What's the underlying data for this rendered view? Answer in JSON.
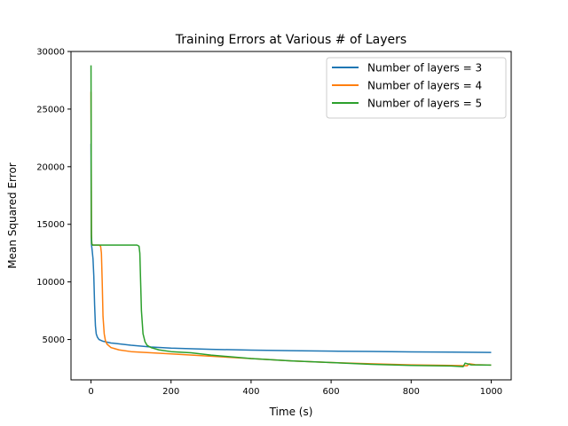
{
  "chart_data": {
    "type": "line",
    "title": "Training Errors at Various # of Layers",
    "xlabel": "Time (s)",
    "ylabel": "Mean Squared Error",
    "xlim": [
      -50,
      1050
    ],
    "ylim": [
      1500,
      30000
    ],
    "xticks": [
      0,
      200,
      400,
      600,
      800,
      1000
    ],
    "yticks": [
      5000,
      10000,
      15000,
      20000,
      25000,
      30000
    ],
    "xtick_labels": [
      "0",
      "200",
      "400",
      "600",
      "800",
      "1000"
    ],
    "ytick_labels": [
      "5000",
      "10000",
      "15000",
      "20000",
      "25000",
      "30000"
    ],
    "grid": false,
    "legend_position": "top-right",
    "series": [
      {
        "name": "Number of layers = 3",
        "color": "#1f77b4",
        "x": [
          0,
          0.5,
          1,
          2,
          3,
          5,
          7,
          9,
          11,
          13,
          16,
          20,
          30,
          50,
          100,
          150,
          200,
          300,
          400,
          500,
          600,
          700,
          800,
          900,
          1000
        ],
        "y": [
          22000,
          14500,
          13300,
          13000,
          12700,
          12000,
          10500,
          8000,
          6200,
          5500,
          5200,
          5000,
          4850,
          4700,
          4500,
          4350,
          4250,
          4150,
          4080,
          4030,
          3990,
          3960,
          3930,
          3910,
          3880
        ]
      },
      {
        "name": "Number of layers = 4",
        "color": "#ff7f0e",
        "x": [
          0,
          1,
          2,
          4,
          10,
          20,
          24,
          26,
          28,
          30,
          33,
          36,
          40,
          50,
          70,
          100,
          150,
          200,
          300,
          400,
          500,
          600,
          700,
          800,
          900,
          940,
          945,
          960,
          1000
        ],
        "y": [
          26500,
          14000,
          13300,
          13200,
          13200,
          13200,
          13100,
          12500,
          10000,
          7000,
          5500,
          4900,
          4600,
          4300,
          4100,
          3950,
          3850,
          3750,
          3550,
          3350,
          3150,
          3000,
          2900,
          2800,
          2750,
          2720,
          2900,
          2820,
          2780
        ]
      },
      {
        "name": "Number of layers = 5",
        "color": "#2ca02c",
        "x": [
          0,
          0.5,
          1,
          2,
          4,
          10,
          30,
          60,
          90,
          115,
          120,
          122,
          124,
          126,
          130,
          135,
          140,
          150,
          170,
          200,
          250,
          300,
          400,
          500,
          600,
          700,
          800,
          900,
          930,
          935,
          950,
          1000
        ],
        "y": [
          28800,
          20000,
          14000,
          13300,
          13200,
          13200,
          13200,
          13200,
          13200,
          13200,
          13100,
          12500,
          10000,
          7500,
          5500,
          4800,
          4500,
          4300,
          4100,
          3950,
          3850,
          3650,
          3350,
          3150,
          3000,
          2850,
          2750,
          2700,
          2650,
          2950,
          2800,
          2780
        ]
      }
    ]
  }
}
